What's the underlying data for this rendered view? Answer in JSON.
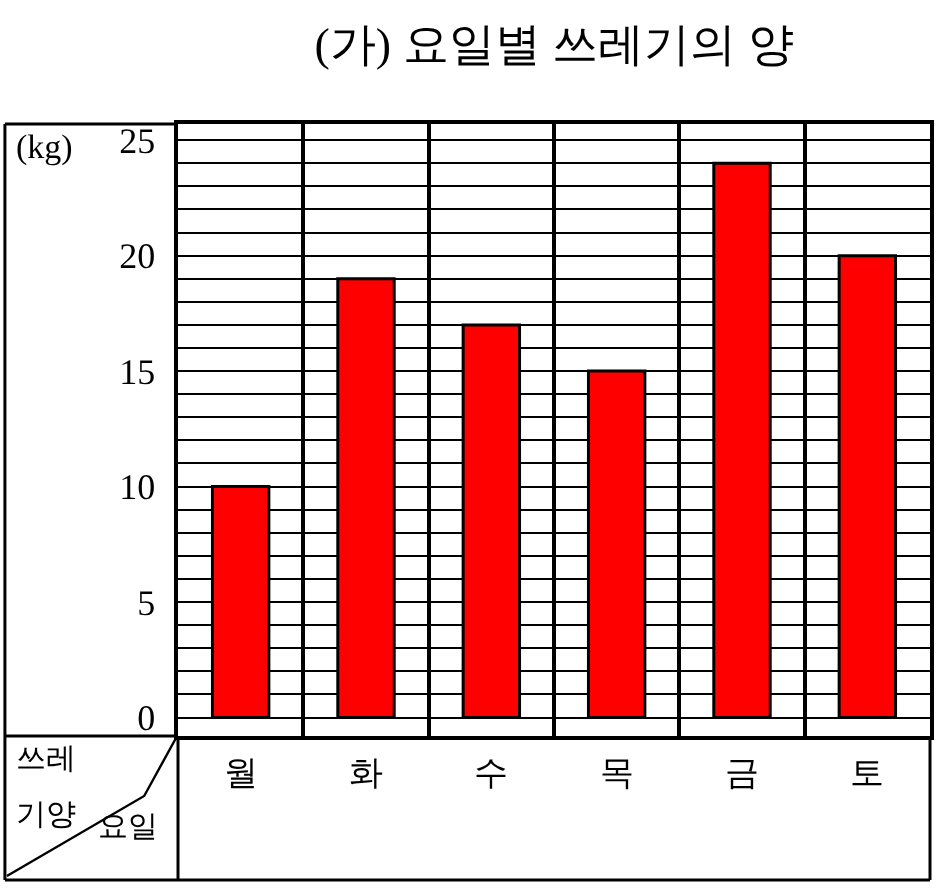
{
  "chart_data": {
    "type": "bar",
    "title": "(가) 요일별 쓰레기의 양",
    "xlabel": "요일",
    "ylabel": "쓰레기양",
    "annotations": [
      "(kg)"
    ],
    "categories": [
      "월",
      "화",
      "수",
      "목",
      "금",
      "토"
    ],
    "values": [
      10,
      19,
      17,
      15,
      24,
      20
    ],
    "color": "#ff0000",
    "ylim": [
      -0.8,
      25.7
    ],
    "yticks": [
      0,
      {
        "value": 1,
        "label": null
      },
      {
        "value": 2,
        "label": null
      },
      {
        "value": 3,
        "label": null
      },
      {
        "value": 4,
        "label": null
      },
      5,
      {
        "value": 6,
        "label": null
      },
      {
        "value": 7,
        "label": null
      },
      {
        "value": 8,
        "label": null
      },
      {
        "value": 9,
        "label": null
      },
      10,
      {
        "value": 11,
        "label": null
      },
      {
        "value": 12,
        "label": null
      },
      {
        "value": 13,
        "label": null
      },
      {
        "value": 14,
        "label": null
      },
      15,
      {
        "value": 16,
        "label": null
      },
      {
        "value": 17,
        "label": null
      },
      {
        "value": 18,
        "label": null
      },
      {
        "value": 19,
        "label": null
      },
      20,
      {
        "value": 21,
        "label": null
      },
      {
        "value": 22,
        "label": null
      },
      {
        "value": 23,
        "label": null
      },
      {
        "value": 24,
        "label": null
      },
      25
    ],
    "grid": true
  }
}
